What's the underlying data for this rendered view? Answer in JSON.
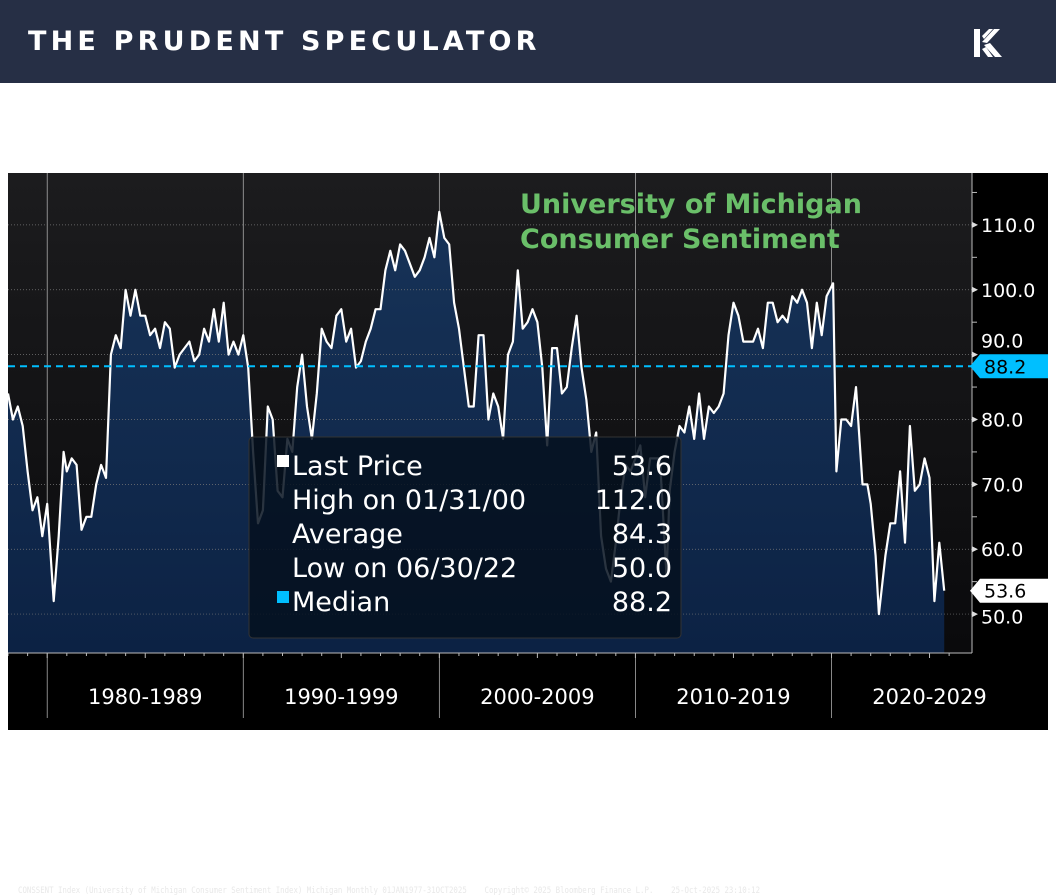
{
  "header": {
    "brand": "THE PRUDENT SPECULATOR",
    "logo": "prudent-speculator-k-logo",
    "background": "#262f45"
  },
  "chart_data": {
    "type": "area",
    "title": [
      "University of Michigan",
      "Consumer Sentiment"
    ],
    "title_color": "#6abf69",
    "line_color": "#ffffff",
    "fill_color": "#0c2244",
    "xlim": [
      "1978-01",
      "2027-03"
    ],
    "ylim": [
      44,
      118
    ],
    "y_ticks": [
      50,
      60,
      70,
      80,
      90,
      100,
      110
    ],
    "y_tick_labels": [
      "50.0",
      "60.0",
      "70.0",
      "80.0",
      "90.0",
      "100.0",
      "110.0"
    ],
    "x_tick_labels": [
      {
        "label": "1980-1989",
        "start": 1980
      },
      {
        "label": "1990-1999",
        "start": 1990
      },
      {
        "label": "2000-2009",
        "start": 2000
      },
      {
        "label": "2010-2019",
        "start": 2010
      },
      {
        "label": "2020-2029",
        "start": 2020
      }
    ],
    "grid": true,
    "median": {
      "value": 88.2,
      "label": "88.2",
      "color": "#00bfff"
    },
    "last": {
      "value": 53.6,
      "label": "53.6"
    },
    "legend": {
      "placement": "bottom-center",
      "items": [
        {
          "label": "Last Price",
          "value": "53.6",
          "marker": "white-square"
        },
        {
          "label": "High on 01/31/00",
          "value": "112.0",
          "marker": "none"
        },
        {
          "label": "Average",
          "value": "84.3",
          "marker": "none"
        },
        {
          "label": "Low on 06/30/22",
          "value": "50.0",
          "marker": "none"
        },
        {
          "label": "Median",
          "value": "88.2",
          "marker": "cyan-square"
        }
      ]
    },
    "series": [
      {
        "points": [
          [
            "1978-01",
            84
          ],
          [
            "1978-04",
            80
          ],
          [
            "1978-07",
            82
          ],
          [
            "1978-10",
            79
          ],
          [
            "1979-01",
            72
          ],
          [
            "1979-04",
            66
          ],
          [
            "1979-07",
            68
          ],
          [
            "1979-10",
            62
          ],
          [
            "1980-01",
            67
          ],
          [
            "1980-05",
            52
          ],
          [
            "1980-08",
            62
          ],
          [
            "1980-11",
            75
          ],
          [
            "1981-01",
            72
          ],
          [
            "1981-04",
            74
          ],
          [
            "1981-07",
            73
          ],
          [
            "1981-10",
            63
          ],
          [
            "1982-01",
            65
          ],
          [
            "1982-04",
            65
          ],
          [
            "1982-07",
            70
          ],
          [
            "1982-10",
            73
          ],
          [
            "1983-01",
            71
          ],
          [
            "1983-04",
            90
          ],
          [
            "1983-07",
            93
          ],
          [
            "1983-10",
            91
          ],
          [
            "1984-01",
            100
          ],
          [
            "1984-04",
            96
          ],
          [
            "1984-07",
            100
          ],
          [
            "1984-10",
            96
          ],
          [
            "1985-01",
            96
          ],
          [
            "1985-04",
            93
          ],
          [
            "1985-07",
            94
          ],
          [
            "1985-10",
            91
          ],
          [
            "1986-01",
            95
          ],
          [
            "1986-04",
            94
          ],
          [
            "1986-07",
            88
          ],
          [
            "1986-10",
            90
          ],
          [
            "1987-01",
            91
          ],
          [
            "1987-04",
            92
          ],
          [
            "1987-07",
            89
          ],
          [
            "1987-10",
            90
          ],
          [
            "1988-01",
            94
          ],
          [
            "1988-04",
            92
          ],
          [
            "1988-07",
            97
          ],
          [
            "1988-10",
            92
          ],
          [
            "1989-01",
            98
          ],
          [
            "1989-04",
            90
          ],
          [
            "1989-07",
            92
          ],
          [
            "1989-10",
            90
          ],
          [
            "1990-01",
            93
          ],
          [
            "1990-04",
            88
          ],
          [
            "1990-07",
            75
          ],
          [
            "1990-10",
            64
          ],
          [
            "1991-01",
            66
          ],
          [
            "1991-04",
            82
          ],
          [
            "1991-07",
            80
          ],
          [
            "1991-10",
            69
          ],
          [
            "1992-01",
            68
          ],
          [
            "1992-04",
            77
          ],
          [
            "1992-07",
            75
          ],
          [
            "1992-10",
            85
          ],
          [
            "1993-01",
            90
          ],
          [
            "1993-04",
            82
          ],
          [
            "1993-07",
            77
          ],
          [
            "1993-10",
            84
          ],
          [
            "1994-01",
            94
          ],
          [
            "1994-04",
            92
          ],
          [
            "1994-07",
            91
          ],
          [
            "1994-10",
            96
          ],
          [
            "1995-01",
            97
          ],
          [
            "1995-04",
            92
          ],
          [
            "1995-07",
            94
          ],
          [
            "1995-10",
            88
          ],
          [
            "1996-01",
            89
          ],
          [
            "1996-04",
            92
          ],
          [
            "1996-07",
            94
          ],
          [
            "1996-10",
            97
          ],
          [
            "1997-01",
            97
          ],
          [
            "1997-04",
            103
          ],
          [
            "1997-07",
            106
          ],
          [
            "1997-10",
            103
          ],
          [
            "1998-01",
            107
          ],
          [
            "1998-04",
            106
          ],
          [
            "1998-07",
            104
          ],
          [
            "1998-10",
            102
          ],
          [
            "1999-01",
            103
          ],
          [
            "1999-04",
            105
          ],
          [
            "1999-07",
            108
          ],
          [
            "1999-10",
            105
          ],
          [
            "2000-01",
            112
          ],
          [
            "2000-04",
            108
          ],
          [
            "2000-07",
            107
          ],
          [
            "2000-10",
            98
          ],
          [
            "2001-01",
            94
          ],
          [
            "2001-04",
            88
          ],
          [
            "2001-07",
            82
          ],
          [
            "2001-10",
            82
          ],
          [
            "2002-01",
            93
          ],
          [
            "2002-04",
            93
          ],
          [
            "2002-07",
            80
          ],
          [
            "2002-10",
            84
          ],
          [
            "2003-01",
            82
          ],
          [
            "2003-04",
            77
          ],
          [
            "2003-07",
            90
          ],
          [
            "2003-10",
            92
          ],
          [
            "2004-01",
            103
          ],
          [
            "2004-04",
            94
          ],
          [
            "2004-07",
            95
          ],
          [
            "2004-10",
            97
          ],
          [
            "2005-01",
            95
          ],
          [
            "2005-04",
            88
          ],
          [
            "2005-07",
            76
          ],
          [
            "2005-10",
            91
          ],
          [
            "2006-01",
            91
          ],
          [
            "2006-04",
            84
          ],
          [
            "2006-07",
            85
          ],
          [
            "2006-10",
            91
          ],
          [
            "2007-01",
            96
          ],
          [
            "2007-04",
            88
          ],
          [
            "2007-07",
            83
          ],
          [
            "2007-10",
            75
          ],
          [
            "2008-01",
            78
          ],
          [
            "2008-04",
            62
          ],
          [
            "2008-07",
            57
          ],
          [
            "2008-10",
            55
          ],
          [
            "2009-01",
            61
          ],
          [
            "2009-04",
            68
          ],
          [
            "2009-07",
            73
          ],
          [
            "2009-10",
            72
          ],
          [
            "2010-01",
            74
          ],
          [
            "2010-04",
            76
          ],
          [
            "2010-07",
            68
          ],
          [
            "2010-10",
            74
          ],
          [
            "2011-01",
            74
          ],
          [
            "2011-04",
            74
          ],
          [
            "2011-08",
            56
          ],
          [
            "2011-10",
            69
          ],
          [
            "2012-01",
            75
          ],
          [
            "2012-04",
            79
          ],
          [
            "2012-07",
            78
          ],
          [
            "2012-10",
            82
          ],
          [
            "2013-01",
            77
          ],
          [
            "2013-04",
            84
          ],
          [
            "2013-07",
            77
          ],
          [
            "2013-10",
            82
          ],
          [
            "2014-01",
            81
          ],
          [
            "2014-04",
            82
          ],
          [
            "2014-07",
            84
          ],
          [
            "2014-10",
            93
          ],
          [
            "2015-01",
            98
          ],
          [
            "2015-04",
            96
          ],
          [
            "2015-07",
            92
          ],
          [
            "2015-10",
            92
          ],
          [
            "2016-01",
            92
          ],
          [
            "2016-04",
            94
          ],
          [
            "2016-07",
            91
          ],
          [
            "2016-10",
            98
          ],
          [
            "2017-01",
            98
          ],
          [
            "2017-04",
            95
          ],
          [
            "2017-07",
            96
          ],
          [
            "2017-10",
            95
          ],
          [
            "2018-01",
            99
          ],
          [
            "2018-04",
            98
          ],
          [
            "2018-07",
            100
          ],
          [
            "2018-10",
            98
          ],
          [
            "2019-01",
            91
          ],
          [
            "2019-04",
            98
          ],
          [
            "2019-07",
            93
          ],
          [
            "2019-10",
            99
          ],
          [
            "2020-02",
            101
          ],
          [
            "2020-04",
            72
          ],
          [
            "2020-07",
            80
          ],
          [
            "2020-10",
            80
          ],
          [
            "2021-01",
            79
          ],
          [
            "2021-04",
            85
          ],
          [
            "2021-08",
            70
          ],
          [
            "2021-11",
            70
          ],
          [
            "2022-01",
            67
          ],
          [
            "2022-04",
            59
          ],
          [
            "2022-06",
            50
          ],
          [
            "2022-10",
            59
          ],
          [
            "2023-01",
            64
          ],
          [
            "2023-04",
            64
          ],
          [
            "2023-07",
            72
          ],
          [
            "2023-10",
            61
          ],
          [
            "2024-01",
            79
          ],
          [
            "2024-04",
            69
          ],
          [
            "2024-07",
            70
          ],
          [
            "2024-10",
            74
          ],
          [
            "2025-01",
            71
          ],
          [
            "2025-04",
            52
          ],
          [
            "2025-07",
            61
          ],
          [
            "2025-10",
            53.6
          ]
        ]
      }
    ]
  },
  "footer": {
    "source": "CONSSENT Index (University of Michigan Consumer Sentiment Index) Michigan Monthly 01JAN1977-31OCT2025",
    "copyright": "Copyright© 2025 Bloomberg Finance L.P.",
    "timestamp": "25-Oct-2025 23:10:12"
  }
}
